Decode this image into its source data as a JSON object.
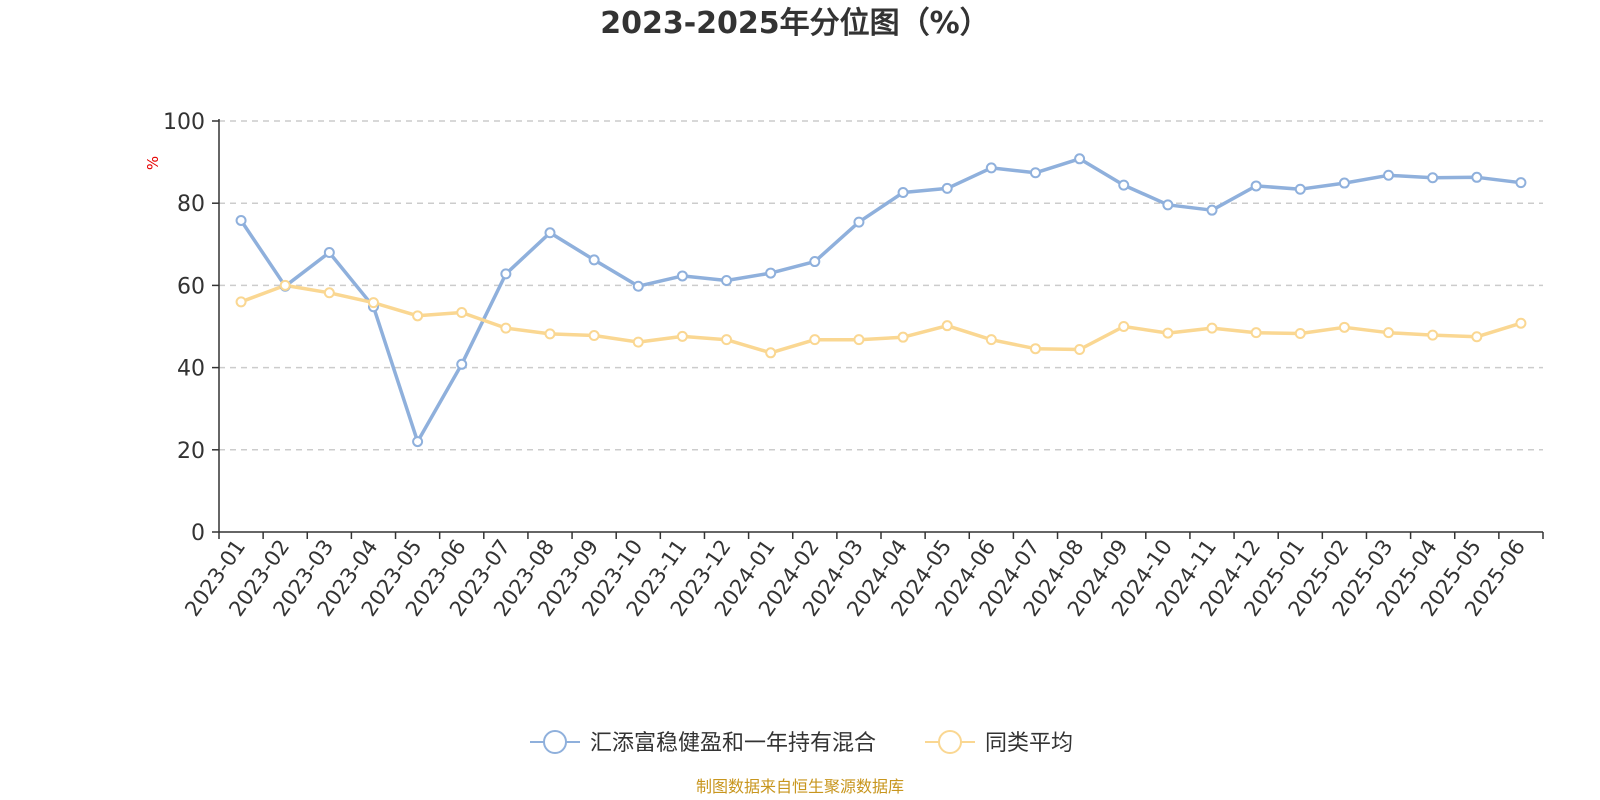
{
  "chart_data": {
    "type": "line",
    "title": "2023-2025年分位图（%）",
    "y_unit": "%",
    "ylim": [
      0,
      100
    ],
    "y_ticks": [
      0,
      20,
      40,
      60,
      80,
      100
    ],
    "grid": "horizontal dashed",
    "legend_position": "bottom-center",
    "categories": [
      "2023-01",
      "2023-02",
      "2023-03",
      "2023-04",
      "2023-05",
      "2023-06",
      "2023-07",
      "2023-08",
      "2023-09",
      "2023-10",
      "2023-11",
      "2023-12",
      "2024-01",
      "2024-02",
      "2024-03",
      "2024-04",
      "2024-05",
      "2024-06",
      "2024-07",
      "2024-08",
      "2024-09",
      "2024-10",
      "2024-11",
      "2024-12",
      "2025-01",
      "2025-02",
      "2025-03",
      "2025-04",
      "2025-05",
      "2025-06"
    ],
    "series": [
      {
        "name": "汇添富稳健盈和一年持有混合",
        "color": "#8fb0dc",
        "values": [
          75.8,
          59.8,
          68.0,
          54.8,
          22.0,
          40.8,
          62.8,
          72.8,
          66.2,
          59.8,
          62.3,
          61.2,
          63.0,
          65.8,
          75.4,
          82.6,
          83.6,
          88.6,
          87.4,
          90.8,
          84.4,
          79.6,
          78.3,
          84.2,
          83.4,
          84.9,
          86.8,
          86.2,
          86.3,
          85.0
        ]
      },
      {
        "name": "同类平均",
        "color": "#fad792",
        "values": [
          56.0,
          60.0,
          58.2,
          55.8,
          52.6,
          53.4,
          49.6,
          48.2,
          47.8,
          46.2,
          47.6,
          46.8,
          43.6,
          46.8,
          46.8,
          47.4,
          50.2,
          46.8,
          44.6,
          44.4,
          50.0,
          48.4,
          49.6,
          48.5,
          48.3,
          49.8,
          48.5,
          47.9,
          47.5,
          50.8
        ]
      }
    ]
  },
  "source_note": "制图数据来自恒生聚源数据库"
}
